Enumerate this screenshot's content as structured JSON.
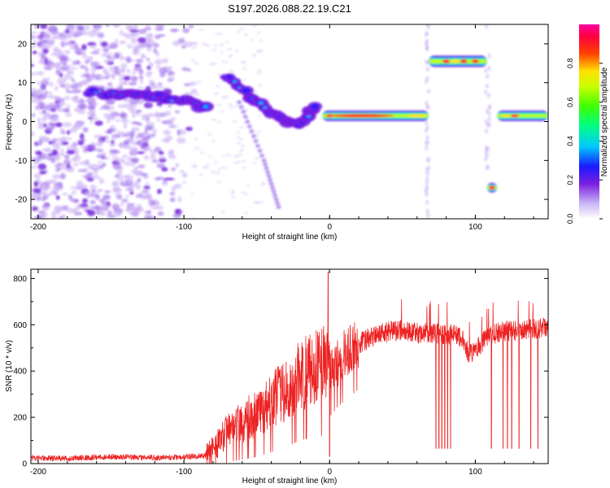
{
  "title": "S197.2026.088.22.19.C21",
  "colors": {
    "snr_line": "#ee2222",
    "spectrogram_dots": "#b48cf0",
    "axes": "#000000"
  },
  "chart_data": [
    {
      "type": "heatmap",
      "name": "spectrogram",
      "xlabel": "Height of straight line (km)",
      "ylabel": "Frequency (Hz)",
      "xlim": [
        -205,
        150
      ],
      "ylim": [
        -25,
        25
      ],
      "x_ticks": [
        -200,
        -100,
        0,
        100
      ],
      "y_ticks": [
        -20,
        -10,
        0,
        10,
        20
      ],
      "colorbar": {
        "label": "Normalized spectral amplitude",
        "range": [
          0,
          1
        ],
        "ticks": [
          "0.0",
          "0.2",
          "0.4",
          "0.6",
          "0.8"
        ],
        "colormap": "rainbow (violet-blue-cyan-green-yellow-red-magenta)"
      },
      "features": [
        {
          "name": "noisy scatter",
          "x_range": [
            -205,
            -90
          ],
          "freq_range": [
            -25,
            25
          ],
          "amplitude": 0.1
        },
        {
          "name": "descending track",
          "points": [
            [
              -165,
              7.5
            ],
            [
              -140,
              7
            ],
            [
              -120,
              6.5
            ],
            [
              -100,
              5.5
            ],
            [
              -85,
              3.5
            ]
          ],
          "amplitude": 0.3
        },
        {
          "name": "dipping arc",
          "points": [
            [
              -72,
              12
            ],
            [
              -60,
              8.5
            ],
            [
              -50,
              5
            ],
            [
              -40,
              2.5
            ],
            [
              -30,
              0.5
            ],
            [
              -22,
              -1
            ],
            [
              -15,
              1.5
            ],
            [
              -10,
              4
            ]
          ],
          "amplitude": 0.35
        },
        {
          "name": "main carrier",
          "x_range": [
            -5,
            68
          ],
          "frequency": 1.5,
          "amplitude_peak": 0.95
        },
        {
          "name": "upper band",
          "x_range": [
            68,
            108
          ],
          "frequency": 15.5,
          "amplitude_peak": 0.95
        },
        {
          "name": "lower band",
          "x_range": [
            108,
            115
          ],
          "frequency": -17,
          "amplitude_peak": 0.9
        },
        {
          "name": "carrier resumes",
          "x_range": [
            115,
            150
          ],
          "frequency": 1.5,
          "amplitude_peak": 0.85
        }
      ]
    },
    {
      "type": "line",
      "name": "snr",
      "xlabel": "Height of straight line (km)",
      "ylabel": "SNR (10 * v/v)",
      "xlim": [
        -205,
        150
      ],
      "ylim": [
        0,
        840
      ],
      "x_ticks": [
        -200,
        -100,
        0,
        100
      ],
      "y_ticks": [
        0,
        200,
        400,
        600,
        800
      ],
      "series": [
        {
          "name": "SNR",
          "x": [
            -205,
            -180,
            -150,
            -120,
            -100,
            -85,
            -80,
            -75,
            -70,
            -60,
            -50,
            -40,
            -30,
            -20,
            -10,
            -5,
            -2,
            0,
            5,
            10,
            20,
            30,
            40,
            50,
            60,
            70,
            80,
            90,
            95,
            100,
            110,
            120,
            130,
            140,
            150
          ],
          "y": [
            25,
            22,
            30,
            25,
            28,
            35,
            60,
            100,
            140,
            180,
            220,
            270,
            320,
            380,
            420,
            440,
            450,
            400,
            440,
            470,
            520,
            550,
            570,
            575,
            565,
            560,
            560,
            550,
            480,
            490,
            560,
            570,
            575,
            580,
            590
          ]
        }
      ],
      "spikes": [
        {
          "x": -1,
          "y": 830
        },
        {
          "x": 0,
          "y": 30
        }
      ],
      "dropouts": [
        73,
        75,
        77,
        79,
        81,
        83,
        111,
        119,
        122,
        125,
        130,
        138,
        143
      ]
    }
  ]
}
